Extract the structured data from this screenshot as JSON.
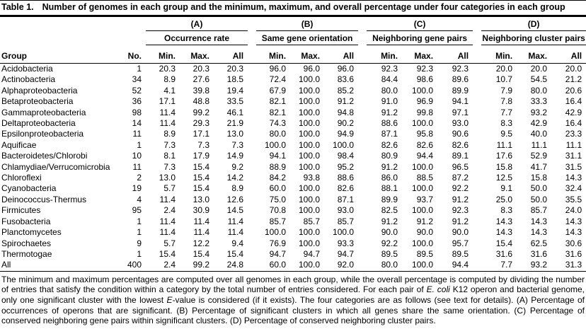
{
  "title": {
    "label": "Table 1.",
    "text": "Number of genomes in each group and the minimum, maximum, and overall percentage under four categories in each group"
  },
  "table": {
    "group_headers": [
      {
        "id": "(A)",
        "name": "Occurrence rate"
      },
      {
        "id": "(B)",
        "name": "Same gene orientation"
      },
      {
        "id": "(C)",
        "name": "Neighboring gene pairs"
      },
      {
        "id": "(D)",
        "name": "Neighboring cluster pairs"
      }
    ],
    "col_headers": {
      "group": "Group",
      "no": "No.",
      "sub": [
        "Min.",
        "Max.",
        "All"
      ]
    },
    "rows": [
      {
        "group": "Acidobacteria",
        "no": "1",
        "values": [
          "20.3",
          "20.3",
          "20.3",
          "96.0",
          "96.0",
          "96.0",
          "92.3",
          "92.3",
          "92.3",
          "20.0",
          "20.0",
          "20.0"
        ]
      },
      {
        "group": "Actinobacteria",
        "no": "34",
        "values": [
          "8.9",
          "27.6",
          "18.5",
          "72.4",
          "100.0",
          "83.6",
          "84.4",
          "98.6",
          "89.6",
          "10.7",
          "54.5",
          "21.2"
        ]
      },
      {
        "group": "Alphaproteobacteria",
        "no": "52",
        "values": [
          "4.1",
          "39.8",
          "19.4",
          "67.9",
          "100.0",
          "85.2",
          "80.0",
          "100.0",
          "89.9",
          "7.9",
          "80.0",
          "20.6"
        ]
      },
      {
        "group": "Betaproteobacteria",
        "no": "36",
        "values": [
          "17.1",
          "48.8",
          "33.5",
          "82.1",
          "100.0",
          "91.2",
          "91.0",
          "96.9",
          "94.1",
          "7.8",
          "33.3",
          "16.4"
        ]
      },
      {
        "group": "Gammaproteobacteria",
        "no": "98",
        "values": [
          "11.4",
          "99.2",
          "46.1",
          "82.1",
          "100.0",
          "94.8",
          "91.2",
          "99.8",
          "97.1",
          "7.7",
          "93.2",
          "42.9"
        ]
      },
      {
        "group": "Deltaproteobacteria",
        "no": "14",
        "values": [
          "11.4",
          "29.3",
          "21.9",
          "74.3",
          "100.0",
          "90.2",
          "88.6",
          "100.0",
          "93.0",
          "8.3",
          "42.9",
          "16.4"
        ]
      },
      {
        "group": "Epsilonproteobacteria",
        "no": "11",
        "values": [
          "8.9",
          "17.1",
          "13.0",
          "80.0",
          "100.0",
          "94.9",
          "87.1",
          "95.8",
          "90.6",
          "9.5",
          "40.0",
          "23.3"
        ]
      },
      {
        "group": "Aquificae",
        "no": "1",
        "values": [
          "7.3",
          "7.3",
          "7.3",
          "100.0",
          "100.0",
          "100.0",
          "82.6",
          "82.6",
          "82.6",
          "11.1",
          "11.1",
          "11.1"
        ]
      },
      {
        "group": "Bacteroidetes/Chlorobi",
        "no": "10",
        "values": [
          "8.1",
          "17.9",
          "14.9",
          "94.1",
          "100.0",
          "98.4",
          "80.9",
          "94.4",
          "89.1",
          "17.6",
          "52.9",
          "31.1"
        ]
      },
      {
        "group": "Chlamydiae/Verrucomicrobia",
        "no": "11",
        "values": [
          "7.3",
          "15.4",
          "9.2",
          "88.9",
          "100.0",
          "95.2",
          "91.2",
          "100.0",
          "96.5",
          "15.8",
          "41.7",
          "31.5"
        ]
      },
      {
        "group": "Chloroflexi",
        "no": "2",
        "values": [
          "13.0",
          "15.4",
          "14.2",
          "84.2",
          "93.8",
          "88.6",
          "86.0",
          "88.5",
          "87.2",
          "12.5",
          "15.8",
          "14.3"
        ]
      },
      {
        "group": "Cyanobacteria",
        "no": "19",
        "values": [
          "5.7",
          "15.4",
          "8.9",
          "60.0",
          "100.0",
          "82.6",
          "88.1",
          "100.0",
          "92.2",
          "9.1",
          "50.0",
          "32.4"
        ]
      },
      {
        "group": "Deinococcus-Thermus",
        "no": "4",
        "values": [
          "11.4",
          "13.0",
          "12.6",
          "75.0",
          "100.0",
          "87.1",
          "89.9",
          "93.7",
          "91.2",
          "25.0",
          "50.0",
          "35.5"
        ]
      },
      {
        "group": "Firmicutes",
        "no": "95",
        "values": [
          "2.4",
          "30.9",
          "14.5",
          "70.8",
          "100.0",
          "93.0",
          "82.5",
          "100.0",
          "92.3",
          "8.3",
          "85.7",
          "24.0"
        ]
      },
      {
        "group": "Fusobacteria",
        "no": "1",
        "values": [
          "11.4",
          "11.4",
          "11.4",
          "85.7",
          "85.7",
          "85.7",
          "91.2",
          "91.2",
          "91.2",
          "14.3",
          "14.3",
          "14.3"
        ]
      },
      {
        "group": "Planctomycetes",
        "no": "1",
        "values": [
          "11.4",
          "11.4",
          "11.4",
          "100.0",
          "100.0",
          "100.0",
          "90.0",
          "90.0",
          "90.0",
          "14.3",
          "14.3",
          "14.3"
        ]
      },
      {
        "group": "Spirochaetes",
        "no": "9",
        "values": [
          "5.7",
          "12.2",
          "9.4",
          "76.9",
          "100.0",
          "93.3",
          "92.2",
          "100.0",
          "95.7",
          "15.4",
          "62.5",
          "30.6"
        ]
      },
      {
        "group": "Thermotogae",
        "no": "1",
        "values": [
          "15.4",
          "15.4",
          "15.4",
          "94.7",
          "94.7",
          "94.7",
          "89.5",
          "89.5",
          "89.5",
          "31.6",
          "31.6",
          "31.6"
        ]
      },
      {
        "group": "All",
        "no": "400",
        "values": [
          "2.4",
          "99.2",
          "24.8",
          "60.0",
          "100.0",
          "92.0",
          "80.0",
          "100.0",
          "94.4",
          "7.7",
          "93.2",
          "31.3"
        ]
      }
    ]
  },
  "footnote": {
    "part1": "The minimum and maximum percentages are computed over all genomes in each group, while the overall percentage is computed by dividing the number of entries that satisfy the condition within a category by the total number of entries considered. For each pair of ",
    "italic1": "E. coli",
    "part2": " K12 operon and bacterial genome, only one significant cluster with the lowest ",
    "italic2": "E",
    "part3": "-value is considered (if it exists). The four categories are as follows (see text for details). (A) Percentage of occurrences of operons that are significant. (B) Percentage of significant clusters in which all genes share the same orientation. (C) Percentage of conserved neighboring gene pairs within significant clusters. (D) Percentage of conserved neighboring cluster pairs."
  }
}
